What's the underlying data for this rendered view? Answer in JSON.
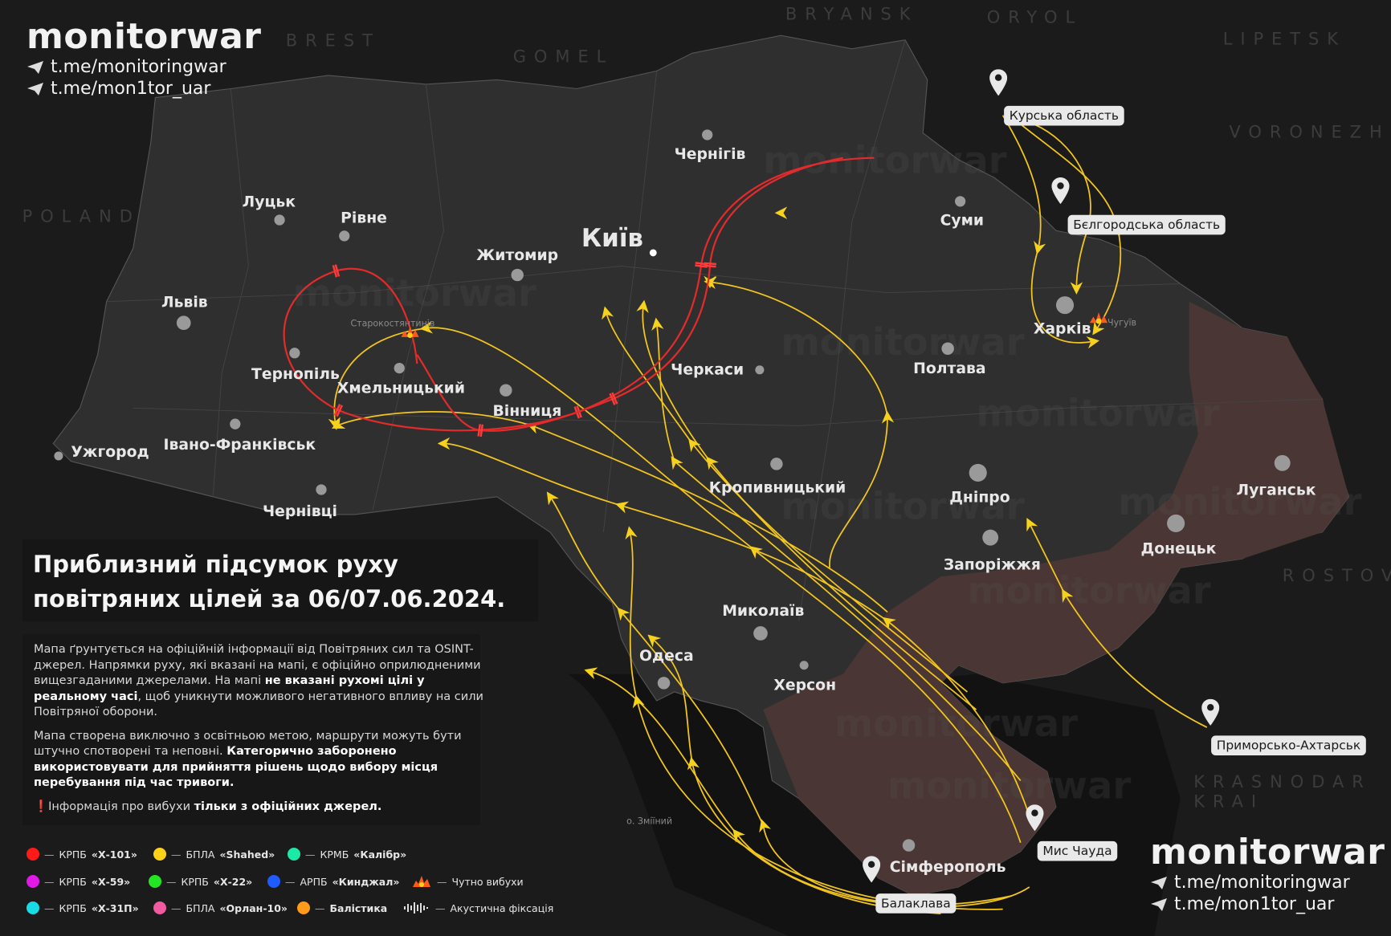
{
  "branding": {
    "name": "monitorwar",
    "links": [
      "t.me/monitoringwar",
      "t.me/mon1tor_uar"
    ]
  },
  "watermark": "monitorwar",
  "title": {
    "line1": "Приблизний підсумок руху",
    "line2": "повітряних цілей за 06/07.06.2024."
  },
  "info": {
    "p1_a": "Мапа ґрунтується на офіційній інформації від Повітряних сил та OSINT-джерел. Напрямки руху, які вказані на мапі, є офіційно оприлюдненими вищезгаданими джерелами. На мапі ",
    "p1_bold": "не вказані рухомі цілі у реальному часі",
    "p1_b": ", щоб уникнути можливого негативного впливу на сили Повітряної оборони.",
    "p2_a": "Мапа створена виключно з освітньою метою, маршрути можуть бути штучно спотворені та неповні. ",
    "p2_bold": "Категорично заборонено використовувати для прийняття рішень щодо вибору місця перебування під час тривоги.",
    "p3_mark": "❗",
    "p3_a": "Інформація про вибухи ",
    "p3_bold": "тільки з офіційних джерел."
  },
  "legend": [
    {
      "prefix": "КРПБ",
      "name": "«Х-101»",
      "color": "#ff1a1a",
      "icon": "dot"
    },
    {
      "prefix": "БПЛА",
      "name": "«Shahed»",
      "color": "#ffd21a",
      "icon": "dot"
    },
    {
      "prefix": "КРМБ",
      "name": "«Калібр»",
      "color": "#1de9a6",
      "icon": "dot"
    },
    {
      "prefix": "КРПБ",
      "name": "«Х-59»",
      "color": "#e019e6",
      "icon": "dot"
    },
    {
      "prefix": "КРПБ",
      "name": "«Х-22»",
      "color": "#22e622",
      "icon": "dot"
    },
    {
      "prefix": "АРПБ",
      "name": "«Кинджал»",
      "color": "#1e5cff",
      "icon": "dot"
    },
    {
      "prefix": "",
      "name": "Чутно вибухи",
      "color": "#ff6a1a",
      "icon": "explosion-icon"
    },
    {
      "prefix": "КРПБ",
      "name": "«Х-31П»",
      "color": "#19dbe6",
      "icon": "dot"
    },
    {
      "prefix": "БПЛА",
      "name": "«Орлан-10»",
      "color": "#ef5aa0",
      "icon": "dot"
    },
    {
      "prefix": "",
      "name": "Балістика",
      "color": "#ff9a1a",
      "icon": "dot"
    },
    {
      "prefix": "",
      "name": "Акустична фіксація",
      "color": "#dddddd",
      "icon": "soundwave-icon"
    }
  ],
  "map": {
    "capital": "Київ",
    "cities": [
      "Чернігів",
      "Житомир",
      "Луцьк",
      "Рівне",
      "Львів",
      "Тернопіль",
      "Хмельницький",
      "Вінниця",
      "Черкаси",
      "Суми",
      "Полтава",
      "Харків",
      "Ужгород",
      "Івано-Франківськ",
      "Чернівці",
      "Кропивницький",
      "Дніпро",
      "Запоріжжя",
      "Луганськ",
      "Донецьк",
      "Миколаїв",
      "Одеса",
      "Херсон",
      "Сімферополь"
    ],
    "small_labels": [
      "Старокостянтинів",
      "Чугуїв",
      "о. Зміїний"
    ],
    "pins": [
      "Курська область",
      "Бєлгородська область",
      "Приморсько-Ахтарськ",
      "Мис Чауда",
      "Балаклава"
    ],
    "regions": [
      "BREST",
      "GOMEL",
      "BRYANSK",
      "ORYOL",
      "LIPETSK",
      "VORONEZH",
      "POLAND",
      "ROSTOV",
      "KRASNODAR",
      "KRAI"
    ],
    "colors": {
      "land": "#2f2f2f",
      "occupied": "#4a3634",
      "background": "#1b1b1b",
      "sea": "#141414",
      "shahed": "#f2c51f",
      "x101": "#e32b2b"
    }
  }
}
